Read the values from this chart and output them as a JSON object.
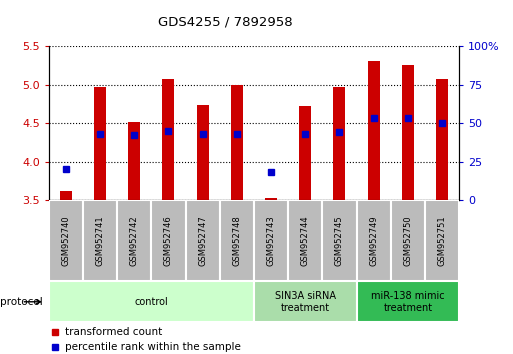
{
  "title": "GDS4255 / 7892958",
  "samples": [
    "GSM952740",
    "GSM952741",
    "GSM952742",
    "GSM952746",
    "GSM952747",
    "GSM952748",
    "GSM952743",
    "GSM952744",
    "GSM952745",
    "GSM952749",
    "GSM952750",
    "GSM952751"
  ],
  "red_values": [
    3.62,
    4.97,
    4.51,
    5.07,
    4.73,
    5.0,
    3.52,
    4.72,
    4.97,
    5.3,
    5.25,
    5.07
  ],
  "blue_percentiles": [
    20,
    43,
    42,
    45,
    43,
    43,
    18,
    43,
    44,
    53,
    53,
    50
  ],
  "bar_bottom": 3.5,
  "ylim_left": [
    3.5,
    5.5
  ],
  "ylim_right": [
    0,
    100
  ],
  "yticks_left": [
    3.5,
    4.0,
    4.5,
    5.0,
    5.5
  ],
  "yticks_right": [
    0,
    25,
    50,
    75,
    100
  ],
  "ytick_labels_right": [
    "0",
    "25",
    "50",
    "75",
    "100%"
  ],
  "bar_color": "#cc0000",
  "blue_color": "#0000cc",
  "groups": [
    {
      "label": "control",
      "start": 0,
      "end": 6,
      "color": "#ccffcc"
    },
    {
      "label": "SIN3A siRNA\ntreatment",
      "start": 6,
      "end": 9,
      "color": "#aaddaa"
    },
    {
      "label": "miR-138 mimic\ntreatment",
      "start": 9,
      "end": 12,
      "color": "#33bb55"
    }
  ],
  "protocol_label": "protocol",
  "legend_items": [
    {
      "label": "transformed count",
      "color": "#cc0000"
    },
    {
      "label": "percentile rank within the sample",
      "color": "#0000cc"
    }
  ],
  "bar_width": 0.35,
  "figsize": [
    5.13,
    3.54
  ],
  "dpi": 100,
  "sample_box_color": "#bbbbbb",
  "sample_box_edge": "#ffffff"
}
